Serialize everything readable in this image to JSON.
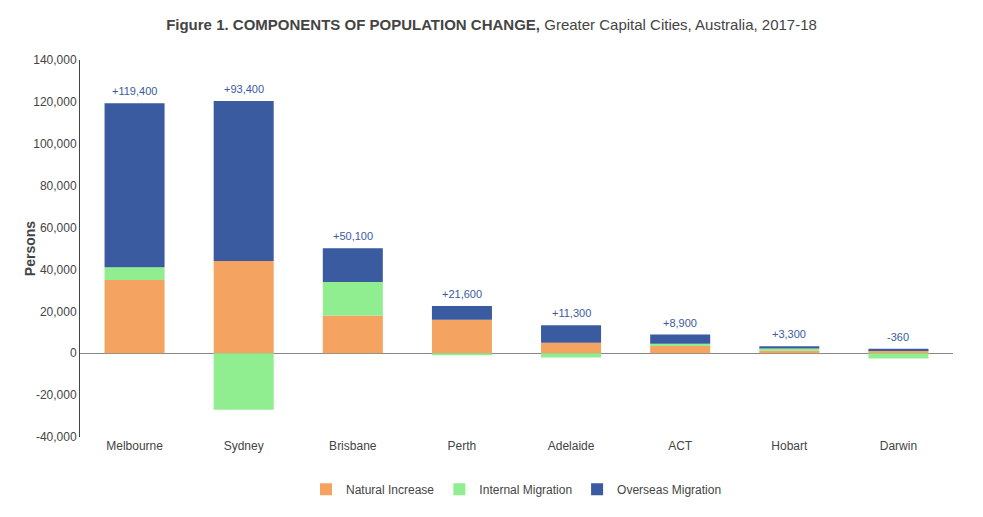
{
  "chart_data": {
    "type": "bar",
    "stacked": true,
    "title": "Figure 1. COMPONENTS OF POPULATION CHANGE,",
    "subtitle": "Greater Capital Cities, Australia, 2017-18",
    "ylabel": "Persons",
    "categories": [
      "Melbourne",
      "Sydney",
      "Brisbane",
      "Perth",
      "Adelaide",
      "ACT",
      "Hobart",
      "Darwin"
    ],
    "series": [
      {
        "name": "Natural Increase",
        "color": "#F4A460",
        "values": [
          35000,
          44000,
          18000,
          16000,
          5000,
          3500,
          1200,
          1500
        ]
      },
      {
        "name": "Internal Migration",
        "color": "#90EE90",
        "values": [
          6000,
          -27000,
          16000,
          -1000,
          -2000,
          1000,
          1100,
          -2500
        ]
      },
      {
        "name": "Overseas Migration",
        "color": "#3A5BA0",
        "values": [
          78400,
          76400,
          16100,
          6600,
          8300,
          4400,
          1000,
          640
        ]
      }
    ],
    "annotations": [
      {
        "x": "Melbourne",
        "text": "+119,400"
      },
      {
        "x": "Sydney",
        "text": "+93,400"
      },
      {
        "x": "Brisbane",
        "text": "+50,100"
      },
      {
        "x": "Perth",
        "text": "+21,600"
      },
      {
        "x": "Adelaide",
        "text": "+11,300"
      },
      {
        "x": "ACT",
        "text": "+8,900"
      },
      {
        "x": "Hobart",
        "text": "+3,300"
      },
      {
        "x": "Darwin",
        "text": "-360"
      }
    ],
    "ylim": [
      -40000,
      140000
    ],
    "yticks": [
      {
        "value": -40000,
        "label": "-40,000"
      },
      {
        "value": -20000,
        "label": "-20,000"
      },
      0,
      {
        "value": 20000,
        "label": "20,000"
      },
      {
        "value": 40000,
        "label": "40,000"
      },
      {
        "value": 60000,
        "label": "60,000"
      },
      {
        "value": 80000,
        "label": "80,000"
      },
      {
        "value": 100000,
        "label": "100,000"
      },
      {
        "value": 120000,
        "label": "120,000"
      },
      {
        "value": 140000,
        "label": "140,000"
      }
    ],
    "grid": false,
    "legend": "bottom"
  }
}
